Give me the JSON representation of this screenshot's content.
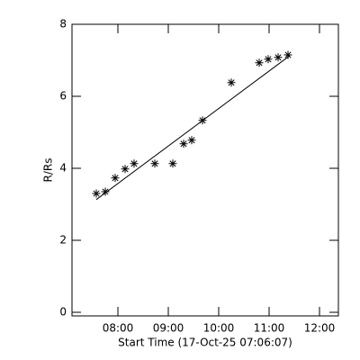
{
  "chart_data": {
    "type": "scatter",
    "xlabel": "Start Time (17-Oct-25 07:06:07)",
    "ylabel": "R/Rs",
    "x": [
      7.571,
      7.75,
      7.946,
      8.143,
      8.321,
      8.732,
      9.089,
      9.304,
      9.464,
      9.679,
      10.25,
      10.804,
      10.982,
      11.179,
      11.375
    ],
    "values": [
      3.3,
      3.35,
      3.73,
      3.98,
      4.13,
      4.13,
      4.13,
      4.68,
      4.78,
      5.33,
      6.38,
      6.93,
      7.03,
      7.08,
      7.15
    ],
    "fit": {
      "x": [
        7.571,
        11.411
      ],
      "values": [
        3.13,
        7.13
      ]
    },
    "color": "#000000",
    "xlim": [
      7.089,
      12.375
    ],
    "ylim": [
      -0.1,
      8
    ],
    "xticks": [
      {
        "value": 8,
        "label": "08:00"
      },
      {
        "value": 9,
        "label": "09:00"
      },
      {
        "value": 10,
        "label": "10:00"
      },
      {
        "value": 11,
        "label": "11:00"
      },
      {
        "value": 12,
        "label": "12:00"
      }
    ],
    "yticks": [
      0,
      2,
      4,
      6,
      8
    ]
  }
}
